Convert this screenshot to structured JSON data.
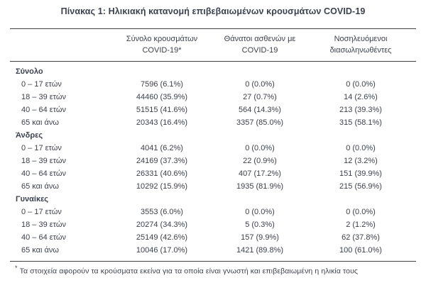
{
  "page": {
    "title": "Πίνακας 1: Ηλικιακή κατανομή επιβεβαιωμένων κρουσμάτων COVID-19",
    "footnote_marker": "*",
    "footnote": "Τα στοιχεία αφορούν τα κρούσματα εκείνα για τα οποία είναι γνωστή και επιβεβαιωμένη η ηλικία τους"
  },
  "colors": {
    "text": "#3b4150",
    "rule": "#3f3f3f",
    "background": "#ffffff"
  },
  "table": {
    "headers": [
      {
        "line1": "",
        "line2": ""
      },
      {
        "line1": "Σύνολο κρουσμάτων",
        "line2": "COVID-19*"
      },
      {
        "line1": "Θάνατοι ασθενών με",
        "line2": "COVID-19"
      },
      {
        "line1": "Νοσηλευόμενοι",
        "line2": "διασωληνωθέντες"
      }
    ],
    "sections": [
      {
        "name": "Σύνολο",
        "rows": [
          {
            "label": "0 – 17 ετών",
            "cases": "7596 (6.1%)",
            "deaths": "0 (0.0%)",
            "intubated": "0 (0.0%)"
          },
          {
            "label": "18 – 39 ετών",
            "cases": "44460 (35.9%)",
            "deaths": "27 (0.7%)",
            "intubated": "14 (2.6%)"
          },
          {
            "label": "40 – 64 ετών",
            "cases": "51515 (41.6%)",
            "deaths": "564 (14.3%)",
            "intubated": "213 (39.3%)"
          },
          {
            "label": "65 και άνω",
            "cases": "20343 (16.4%)",
            "deaths": "3357 (85.0%)",
            "intubated": "315 (58.1%)"
          }
        ]
      },
      {
        "name": "Άνδρες",
        "rows": [
          {
            "label": "0 – 17 ετών",
            "cases": "4041 (6.2%)",
            "deaths": "0 (0.0%)",
            "intubated": "0 (0.0%)"
          },
          {
            "label": "18 – 39 ετών",
            "cases": "24169 (37.3%)",
            "deaths": "22 (0.9%)",
            "intubated": "12 (3.2%)"
          },
          {
            "label": "40 – 64 ετών",
            "cases": "26331 (40.6%)",
            "deaths": "407 (17.2%)",
            "intubated": "151 (39.9%)"
          },
          {
            "label": "65 και άνω",
            "cases": "10292 (15.9%)",
            "deaths": "1935 (81.9%)",
            "intubated": "215 (56.9%)"
          }
        ]
      },
      {
        "name": "Γυναίκες",
        "rows": [
          {
            "label": "0 – 17 ετών",
            "cases": "3553 (6.0%)",
            "deaths": "0 (0.0%)",
            "intubated": "0 (0.0%)"
          },
          {
            "label": "18 – 39 ετών",
            "cases": "20274 (34.3%)",
            "deaths": "5 (0.3%)",
            "intubated": "2 (1.2%)"
          },
          {
            "label": "40 – 64 ετών",
            "cases": "25149 (42.6%)",
            "deaths": "157 (9.9%)",
            "intubated": "62 (37.8%)"
          },
          {
            "label": "65 και άνω",
            "cases": "10046 (17.0%)",
            "deaths": "1421 (89.8%)",
            "intubated": "100 (61.0%)"
          }
        ]
      }
    ]
  }
}
